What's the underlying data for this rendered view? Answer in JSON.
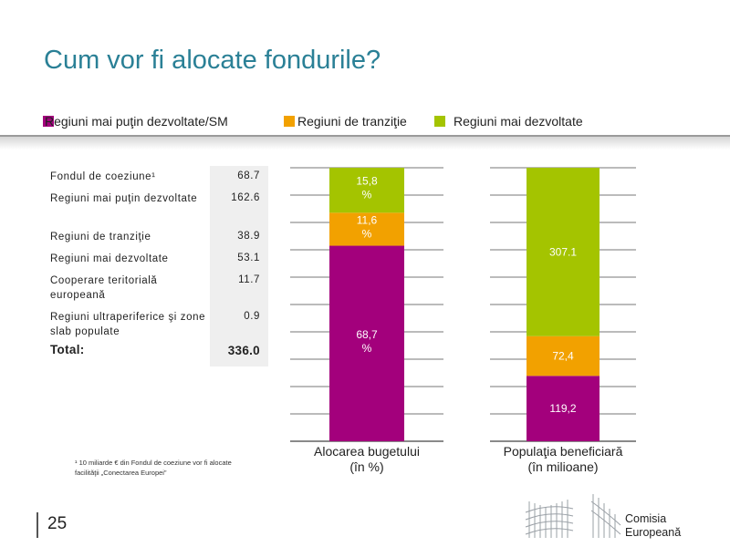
{
  "page": {
    "title": "Cum vor fi alocate fondurile?",
    "page_number": "25"
  },
  "legend": [
    {
      "label": "Regiuni mai puţin dezvoltate/SM",
      "color": "#a3007c"
    },
    {
      "label": "Regiuni de tranziţie",
      "color": "#f2a100"
    },
    {
      "label": "Regiuni mai dezvoltate",
      "color": "#a4c400"
    }
  ],
  "table": {
    "rows": [
      {
        "label": "Fondul de coeziune¹",
        "value": "68.7"
      },
      {
        "label": "Regiuni mai puţin dezvoltate",
        "value": "162.6"
      },
      {
        "label": "Regiuni de tranziţie",
        "value": "38.9"
      },
      {
        "label": "Regiuni mai dezvoltate",
        "value": "53.1"
      },
      {
        "label": "Cooperare teritorială europeană",
        "value": "11.7"
      },
      {
        "label": "Regiuni ultraperiferice şi zone slab populate",
        "value": "0.9"
      }
    ],
    "total_label": "Total:",
    "total_value": "336.0"
  },
  "footnote": "¹ 10 miliarde € din Fondul de coeziune vor fi alocate facilităţii „Conectarea Europei”",
  "logo": {
    "line1": "Comisia",
    "line2": "Europeană"
  },
  "chart_data": {
    "type": "bar",
    "stacked": true,
    "categories": [
      "Alocarea bugetului\n(în %)",
      "Populaţia beneficiară\n(în milioane)"
    ],
    "series": [
      {
        "name": "Regiuni mai puţin dezvoltate/SM",
        "color": "#a3007c",
        "values": [
          68.7,
          119.2
        ],
        "labels": [
          "68,7 %",
          "119,2"
        ]
      },
      {
        "name": "Regiuni de tranziţie",
        "color": "#f2a100",
        "values": [
          11.6,
          72.4
        ],
        "labels": [
          "11,6 %",
          "72,4"
        ]
      },
      {
        "name": "Regiuni mai dezvoltate",
        "color": "#a4c400",
        "values": [
          15.8,
          307.1
        ],
        "labels": [
          "15,8 %",
          "307.1"
        ]
      }
    ],
    "gridlines": true,
    "legend_position": "top"
  }
}
